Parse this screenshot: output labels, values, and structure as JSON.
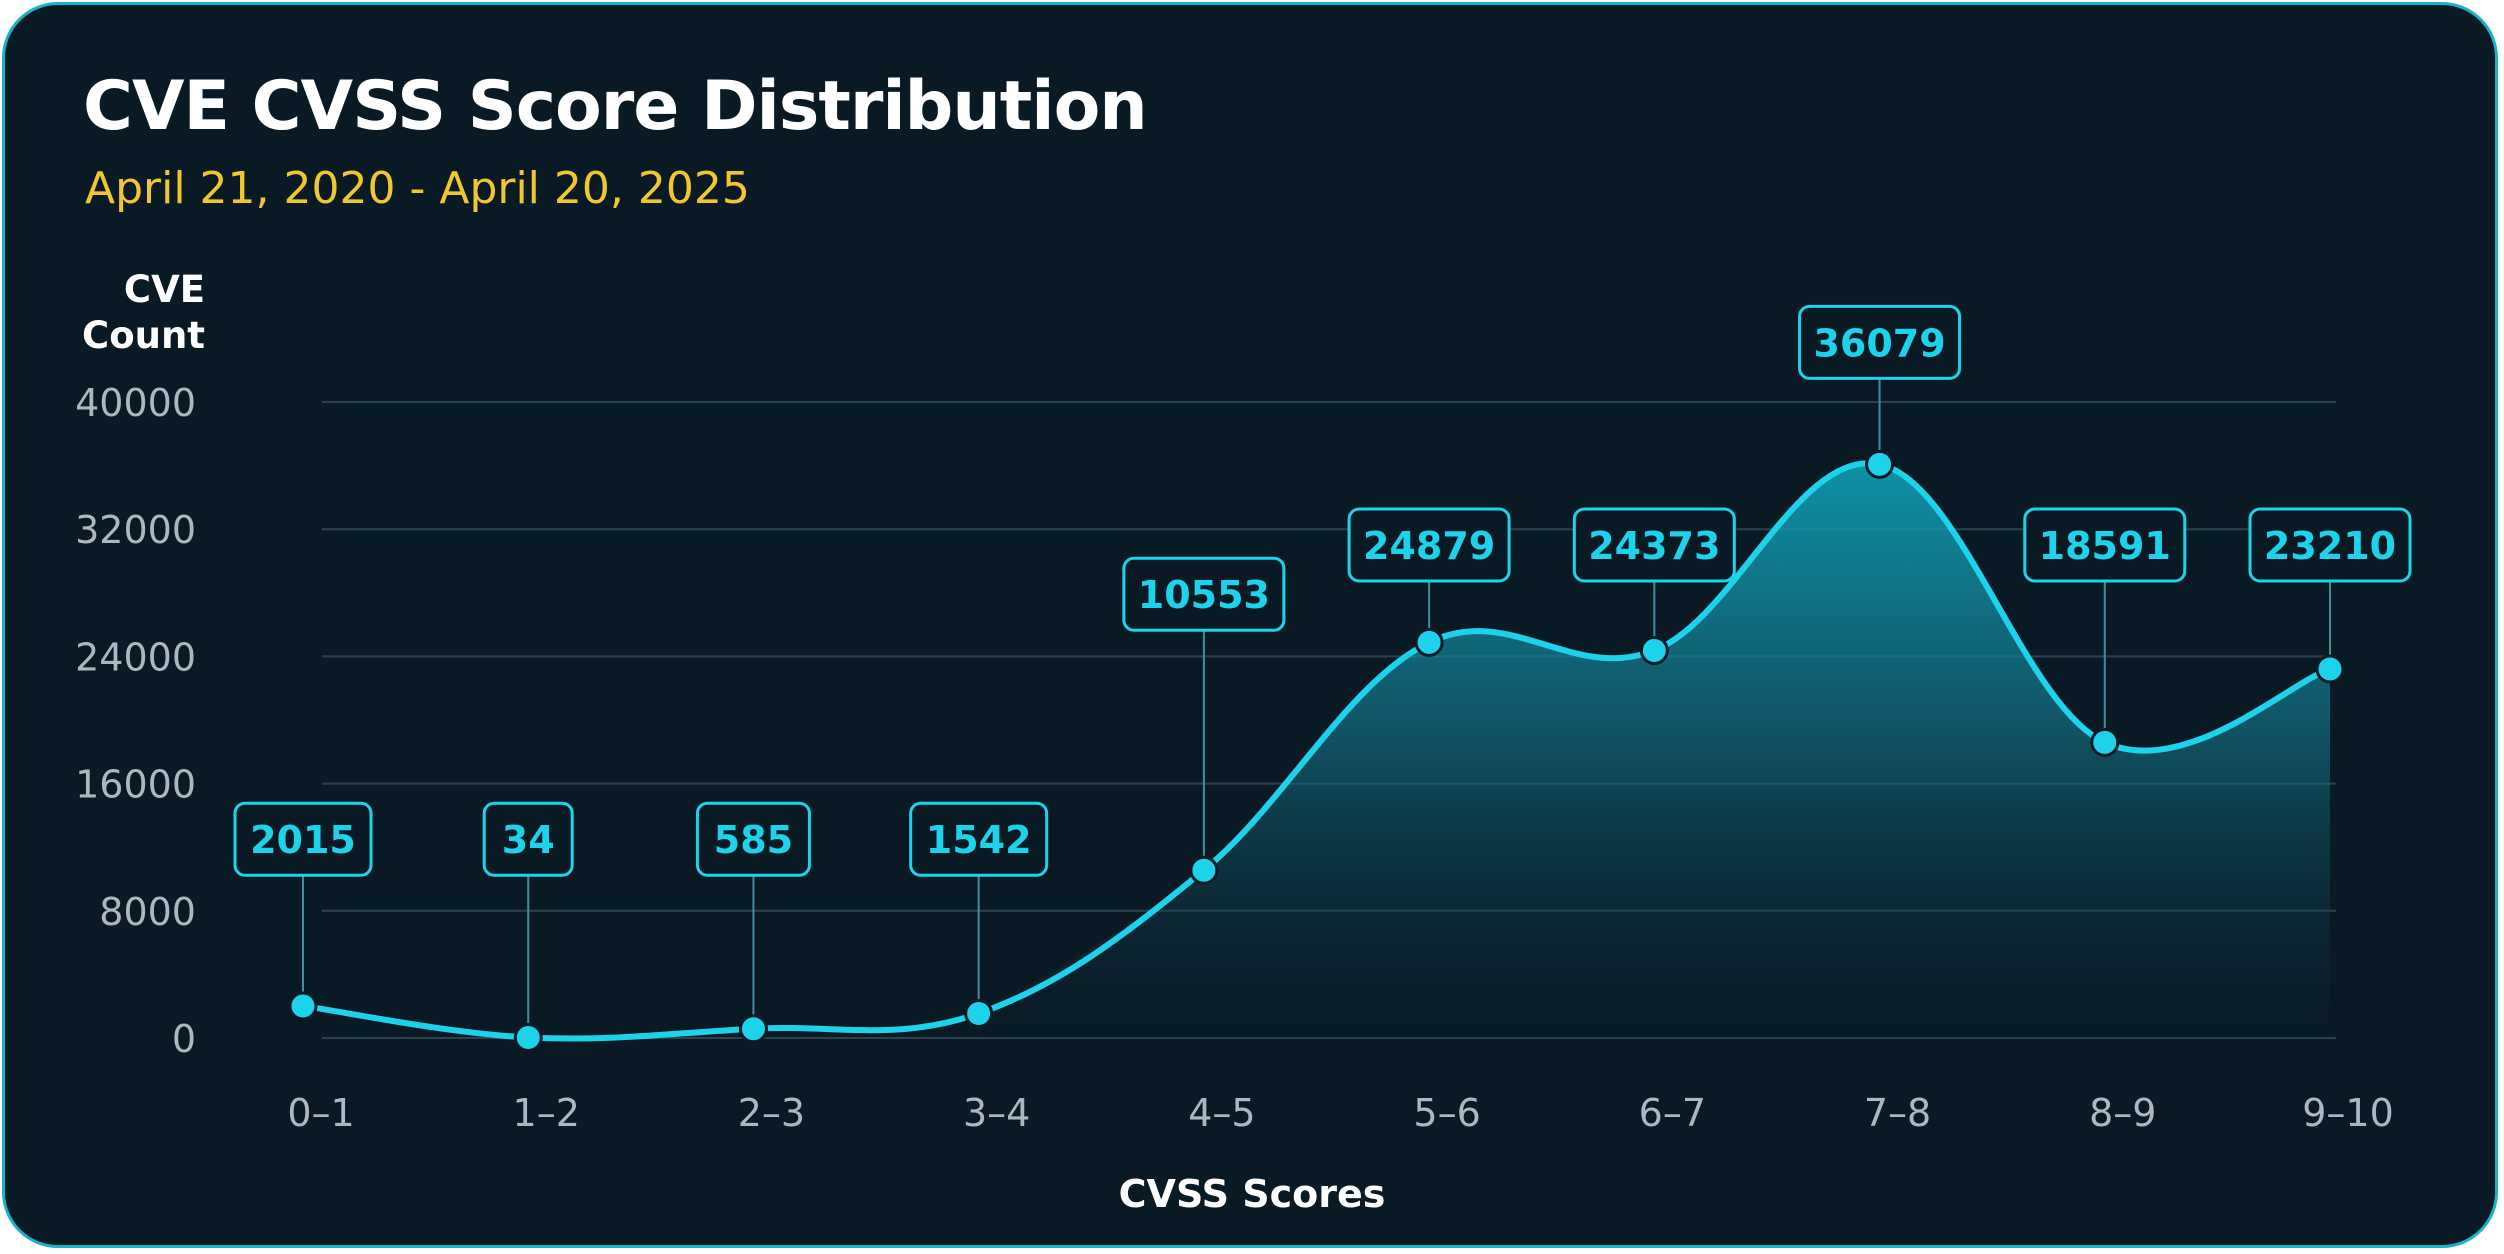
{
  "chart_data": {
    "type": "area",
    "title": "CVE CVSS Score Distribution",
    "subtitle": "April 21, 2020 - April 20, 2025",
    "ylabel_lines": [
      "CVE",
      "Count"
    ],
    "xlabel": "CVSS Scores",
    "categories": [
      "0–1",
      "1–2",
      "2–3",
      "3–4",
      "4–5",
      "5–6",
      "6–7",
      "7–8",
      "8–9",
      "9–10"
    ],
    "values": [
      2015,
      34,
      585,
      1542,
      10553,
      24879,
      24373,
      36079,
      18591,
      23210
    ],
    "labels": [
      "2015",
      "34",
      "585",
      "1542",
      "10553",
      "24879",
      "24373",
      "36079",
      "18591",
      "23210"
    ],
    "yticks": [
      0,
      8000,
      16000,
      24000,
      32000,
      40000
    ],
    "ytick_labels": [
      "0",
      "8000",
      "16000",
      "24000",
      "32000",
      "40000"
    ],
    "ylim": [
      0,
      40000
    ],
    "grid": true
  },
  "colors": {
    "background": "#0a1a25",
    "accent": "#1dd3ec",
    "title": "#ffffff",
    "subtitle": "#f2c72e",
    "axis_text": "#aab8c0",
    "grid": "#2a4350"
  }
}
